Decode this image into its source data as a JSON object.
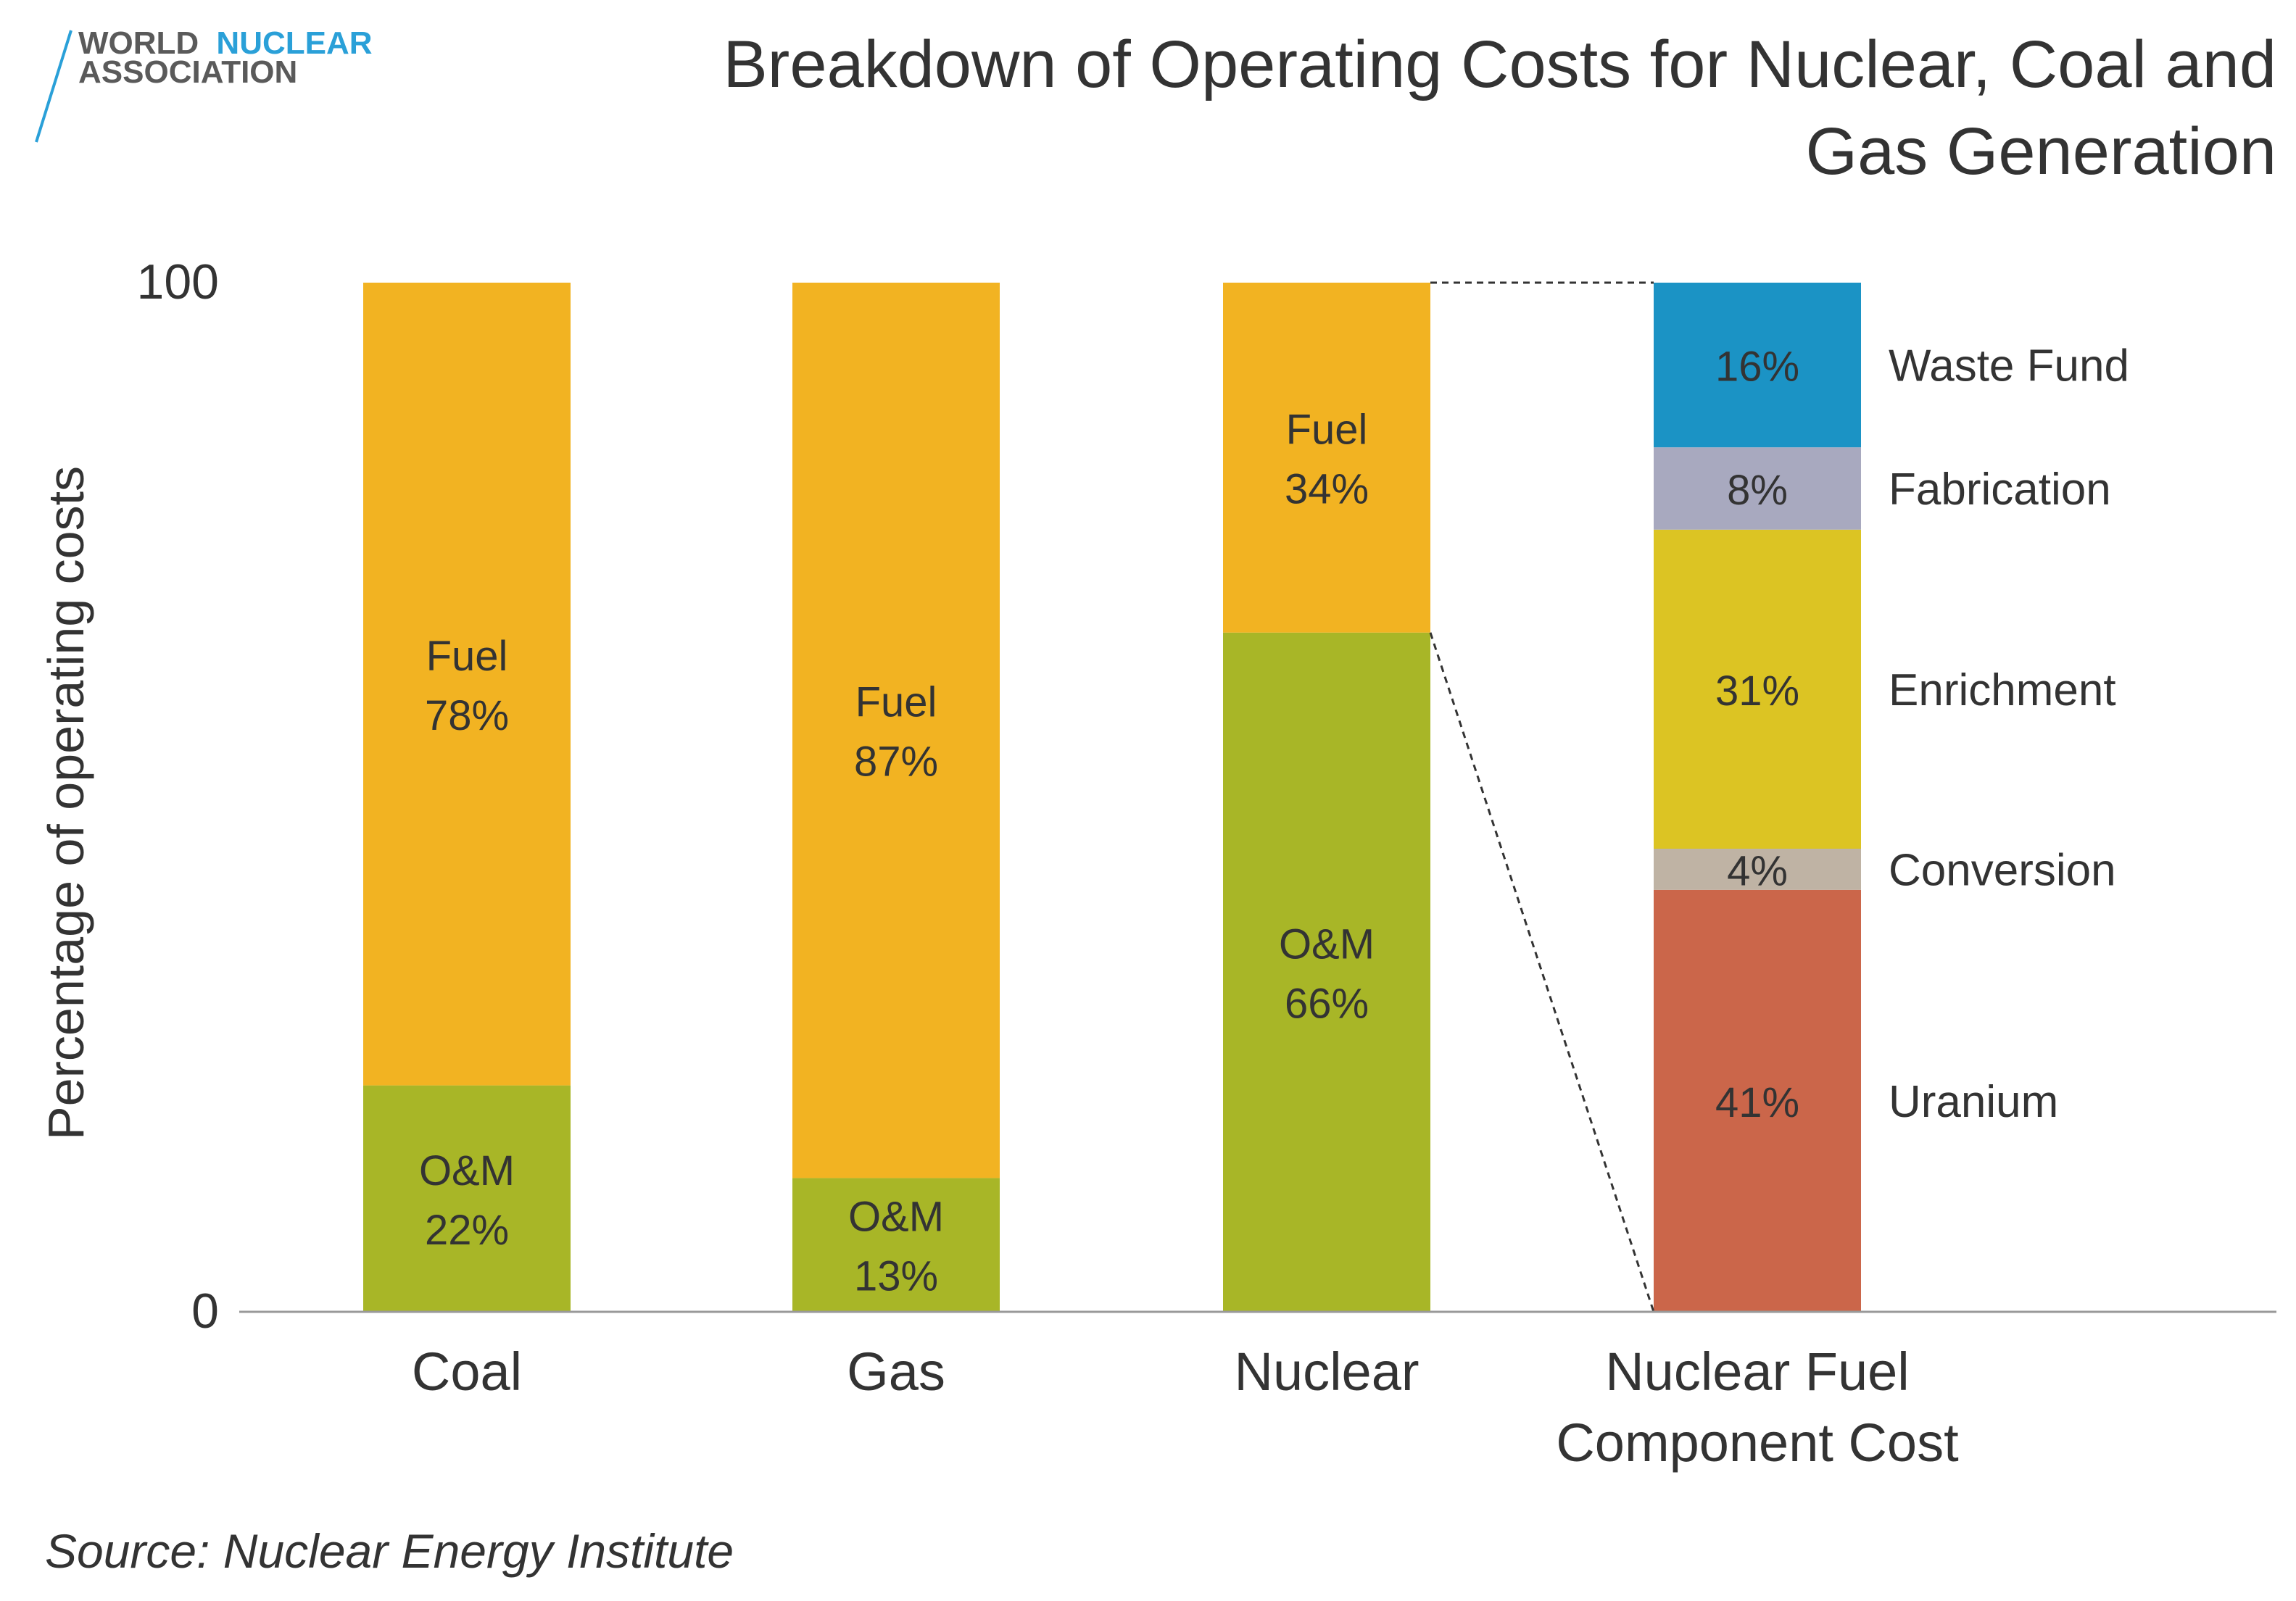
{
  "logo": {
    "line1_a": "WORLD",
    "line1_b": "NUCLEAR",
    "line2": "ASSOCIATION"
  },
  "source": "Source: Nuclear Energy Institute",
  "colors": {
    "fuel": "#F2B322",
    "om": "#A8B627",
    "waste_fund": "#1B93C5",
    "fabrication": "#A8A9BF",
    "enrichment": "#DCC423",
    "conversion": "#BFB3A4",
    "uranium": "#CB664A",
    "text": "#333333",
    "axis": "#999999",
    "logo_dark": "#5A5A5A",
    "logo_blue": "#2AA0D8"
  },
  "chart_data": {
    "type": "bar",
    "stacked": true,
    "title": "Breakdown of Operating Costs for Nuclear, Coal and Gas Generation",
    "title_lines": [
      "Breakdown of Operating Costs for Nuclear, Coal and",
      "Gas Generation"
    ],
    "ylabel": "Percentage of operating costs",
    "xlabel": "",
    "ylim": [
      0,
      100
    ],
    "yticks": [
      {
        "value": 0,
        "label": "0"
      },
      {
        "value": 100,
        "label": "100"
      }
    ],
    "grid": false,
    "categories": [
      "Coal",
      "Gas",
      "Nuclear",
      "Nuclear Fuel Component Cost"
    ],
    "category_label_lines": [
      [
        "Coal"
      ],
      [
        "Gas"
      ],
      [
        "Nuclear"
      ],
      [
        "Nuclear Fuel",
        "Component Cost"
      ]
    ],
    "bars": [
      {
        "category": "Coal",
        "segments": [
          {
            "name": "O&M",
            "value": 22,
            "label_lines": [
              "O&M",
              "22%"
            ],
            "color_key": "om"
          },
          {
            "name": "Fuel",
            "value": 78,
            "label_lines": [
              "Fuel",
              "78%"
            ],
            "color_key": "fuel"
          }
        ]
      },
      {
        "category": "Gas",
        "segments": [
          {
            "name": "O&M",
            "value": 13,
            "label_lines": [
              "O&M",
              "13%"
            ],
            "color_key": "om"
          },
          {
            "name": "Fuel",
            "value": 87,
            "label_lines": [
              "Fuel",
              "87%"
            ],
            "color_key": "fuel"
          }
        ]
      },
      {
        "category": "Nuclear",
        "segments": [
          {
            "name": "O&M",
            "value": 66,
            "label_lines": [
              "O&M",
              "66%"
            ],
            "color_key": "om"
          },
          {
            "name": "Fuel",
            "value": 34,
            "label_lines": [
              "Fuel",
              "34%"
            ],
            "color_key": "fuel"
          }
        ]
      },
      {
        "category": "Nuclear Fuel Component Cost",
        "segments": [
          {
            "name": "Uranium",
            "value": 41,
            "label_lines": [
              "41%"
            ],
            "side_label": "Uranium",
            "color_key": "uranium"
          },
          {
            "name": "Conversion",
            "value": 4,
            "label_lines": [
              "4%"
            ],
            "side_label": "Conversion",
            "color_key": "conversion"
          },
          {
            "name": "Enrichment",
            "value": 31,
            "label_lines": [
              "31%"
            ],
            "side_label": "Enrichment",
            "color_key": "enrichment"
          },
          {
            "name": "Fabrication",
            "value": 8,
            "label_lines": [
              "8%"
            ],
            "side_label": "Fabrication",
            "color_key": "fabrication"
          },
          {
            "name": "Waste Fund",
            "value": 16,
            "label_lines": [
              "16%"
            ],
            "side_label": "Waste Fund",
            "color_key": "waste_fund"
          }
        ]
      }
    ],
    "annotation": "Nuclear Fuel segment expanded into Nuclear Fuel Component Cost (dashed connector lines)"
  }
}
